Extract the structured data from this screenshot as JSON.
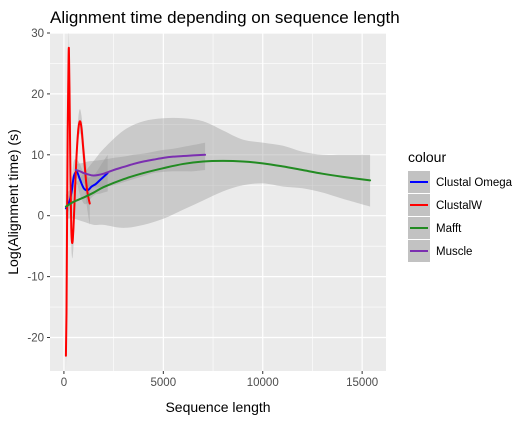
{
  "chart_data": {
    "type": "line",
    "title": "Alignment time depending on sequence length",
    "xlabel": "Sequence length",
    "ylabel": "Log(Alignment time) (s)",
    "xlim": [
      -700,
      16200
    ],
    "ylim": [
      -25.5,
      30
    ],
    "x_ticks": [
      0,
      5000,
      10000,
      15000
    ],
    "x_tick_labels": [
      "0",
      "5000",
      "10000",
      "15000"
    ],
    "y_ticks": [
      -20,
      -10,
      0,
      10,
      20,
      30
    ],
    "y_tick_labels": [
      "-20",
      "-10",
      "0",
      "10",
      "20",
      "30"
    ],
    "grid": true,
    "legend": {
      "title": "colour",
      "placement": "right"
    },
    "series": [
      {
        "name": "Clustal Omega",
        "color": "#0000ff",
        "x": [
          100,
          200,
          300,
          400,
          500,
          650,
          800,
          1000,
          1200,
          1400,
          1600,
          1800,
          2000,
          2200
        ],
        "y": [
          1.2,
          1.8,
          2.6,
          4.2,
          6.5,
          7.2,
          6.0,
          4.5,
          4.2,
          4.8,
          5.2,
          5.8,
          6.4,
          7.0
        ],
        "ci_upper": [
          2.5,
          3.0,
          4.0,
          6.5,
          9.0,
          9.2,
          8.5,
          7.0,
          6.3,
          6.5,
          7.0,
          8.0,
          9.0,
          10.0
        ],
        "ci_lower": [
          0.0,
          0.5,
          1.2,
          2.0,
          4.0,
          5.2,
          3.5,
          2.0,
          2.1,
          3.0,
          3.5,
          3.6,
          3.8,
          4.0
        ]
      },
      {
        "name": "ClustalW",
        "color": "#ff0000",
        "x": [
          100,
          130,
          160,
          190,
          220,
          250,
          290,
          330,
          370,
          420,
          480,
          550,
          630,
          720,
          800,
          880,
          960,
          1040,
          1120,
          1200,
          1300
        ],
        "y": [
          -23.0,
          -16.0,
          0.0,
          14.0,
          22.0,
          27.5,
          18.0,
          6.0,
          -2.0,
          -4.5,
          -2.0,
          3.5,
          9.5,
          14.0,
          15.5,
          14.5,
          11.5,
          8.5,
          5.5,
          3.5,
          2.0
        ],
        "ci_upper": [
          -20.0,
          -13.0,
          3.0,
          17.0,
          25.0,
          30.0,
          20.5,
          8.5,
          0.5,
          -2.0,
          1.0,
          6.5,
          12.0,
          16.0,
          17.5,
          16.5,
          14.0,
          11.0,
          8.5,
          6.5,
          5.5
        ],
        "ci_lower": [
          -26.0,
          -19.0,
          -3.0,
          11.0,
          19.0,
          25.0,
          15.5,
          3.5,
          -4.5,
          -7.0,
          -5.0,
          0.5,
          7.0,
          12.0,
          13.5,
          12.5,
          9.0,
          6.0,
          2.5,
          0.5,
          -1.5
        ]
      },
      {
        "name": "Mafft",
        "color": "#228b22",
        "x": [
          100,
          500,
          1000,
          1500,
          2000,
          3000,
          4000,
          5000,
          6000,
          7000,
          8000,
          9000,
          10000,
          11000,
          12000,
          13000,
          14000,
          15400
        ],
        "y": [
          1.5,
          2.3,
          3.0,
          3.8,
          4.7,
          6.0,
          7.0,
          7.8,
          8.5,
          8.9,
          9.0,
          8.9,
          8.6,
          8.1,
          7.5,
          6.9,
          6.4,
          5.8
        ],
        "ci_upper": [
          3.5,
          5.0,
          7.0,
          9.0,
          11.0,
          14.0,
          15.5,
          16.0,
          16.0,
          15.5,
          14.0,
          12.5,
          12.0,
          11.5,
          10.5,
          10.0,
          10.0,
          10.0
        ],
        "ci_lower": [
          -0.5,
          -0.5,
          -1.0,
          -1.5,
          -1.5,
          -2.0,
          -1.5,
          -0.5,
          1.0,
          2.5,
          4.0,
          5.0,
          5.3,
          4.8,
          4.5,
          3.8,
          2.8,
          1.5
        ]
      },
      {
        "name": "Muscle",
        "color": "#7b2fb0",
        "x": [
          600,
          800,
          1000,
          1200,
          1500,
          2000,
          2500,
          3000,
          3500,
          4000,
          4500,
          5000,
          5500,
          6000,
          6500,
          7100
        ],
        "y": [
          7.5,
          7.3,
          7.0,
          6.8,
          6.6,
          6.9,
          7.5,
          8.0,
          8.5,
          8.9,
          9.2,
          9.5,
          9.7,
          9.8,
          9.9,
          10.0
        ],
        "ci_upper": [
          8.5,
          8.6,
          8.7,
          8.9,
          9.0,
          9.2,
          9.5,
          9.7,
          10.0,
          10.2,
          10.5,
          10.8,
          11.0,
          11.3,
          11.6,
          12.0
        ],
        "ci_lower": [
          6.3,
          5.8,
          5.3,
          4.8,
          4.6,
          4.8,
          5.0,
          5.5,
          6.0,
          6.5,
          7.0,
          7.2,
          7.3,
          7.3,
          7.3,
          7.5
        ]
      }
    ]
  }
}
